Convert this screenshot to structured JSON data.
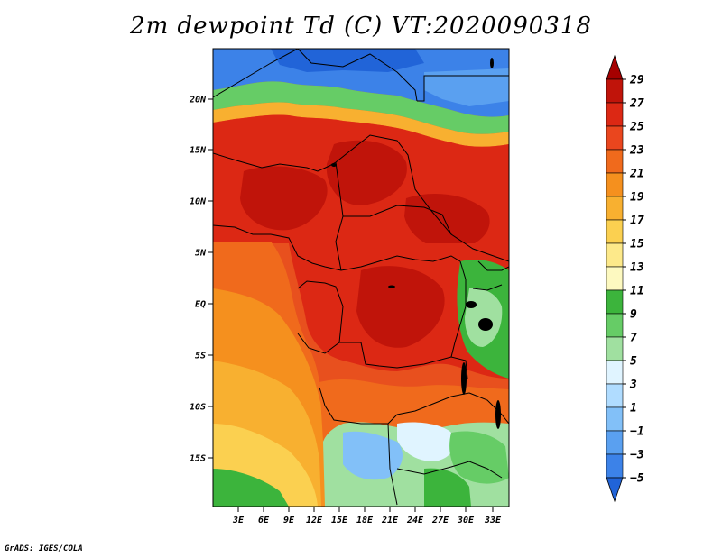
{
  "title": "2m dewpoint Td (C) VT:2020090318",
  "credit": "GrADS: IGES/COLA",
  "lat_labels": [
    "20N",
    "15N",
    "10N",
    "5N",
    "EQ",
    "5S",
    "10S",
    "15S"
  ],
  "lon_labels": [
    "3E",
    "6E",
    "9E",
    "12E",
    "15E",
    "18E",
    "21E",
    "24E",
    "27E",
    "30E",
    "33E"
  ],
  "colorbar": {
    "labels": [
      "29",
      "27",
      "25",
      "23",
      "21",
      "19",
      "17",
      "15",
      "13",
      "11",
      "9",
      "7",
      "5",
      "3",
      "1",
      "−1",
      "−3",
      "−5"
    ],
    "colors": [
      "#a50000",
      "#c0140a",
      "#dc2814",
      "#ea461e",
      "#f06a1c",
      "#f5901e",
      "#f8b030",
      "#fbd050",
      "#fde98a",
      "#fdf9c0",
      "#3cb43c",
      "#66cc66",
      "#a0e0a0",
      "#e0f4ff",
      "#b0dcff",
      "#82c0f8",
      "#5aa0f0",
      "#3c82e8",
      "#2164d8"
    ]
  },
  "colors": {
    "land_hot": "#dc3c14",
    "ocean": "#f5a83a",
    "desert": "#2164d8",
    "border": "#000000"
  }
}
